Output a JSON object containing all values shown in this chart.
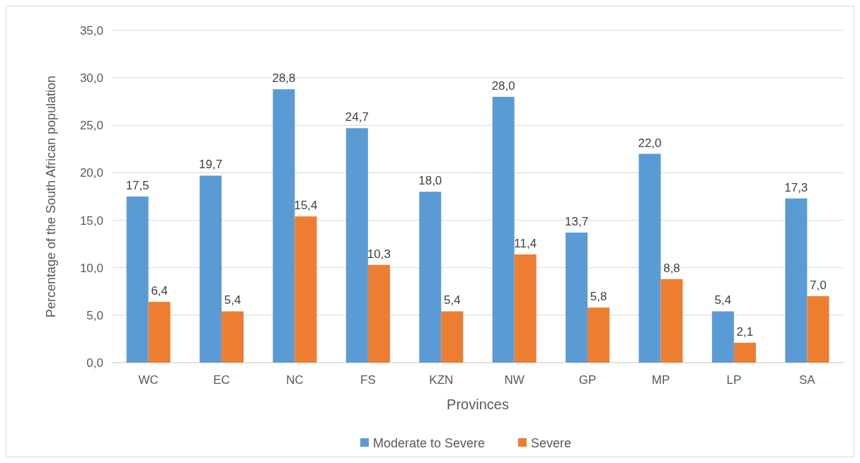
{
  "chart_data": {
    "type": "bar",
    "xlabel": "Provinces",
    "ylabel": "Percentage of the South African population",
    "categories": [
      "WC",
      "EC",
      "NC",
      "FS",
      "KZN",
      "NW",
      "GP",
      "MP",
      "LP",
      "SA"
    ],
    "series": [
      {
        "name": "Moderate to Severe",
        "color": "#5b9bd5",
        "values": [
          17.5,
          19.7,
          28.8,
          24.7,
          18.0,
          28.0,
          13.7,
          22.0,
          5.4,
          17.3
        ],
        "value_labels": [
          "17,5",
          "19,7",
          "28,8",
          "24,7",
          "18,0",
          "28,0",
          "13,7",
          "22,0",
          "5,4",
          "17,3"
        ]
      },
      {
        "name": "Severe",
        "color": "#ed7d31",
        "values": [
          6.4,
          5.4,
          15.4,
          10.3,
          5.4,
          11.4,
          5.8,
          8.8,
          2.1,
          7.0
        ],
        "value_labels": [
          "6,4",
          "5,4",
          "15,4",
          "10,3",
          "5,4",
          "11,4",
          "5,8",
          "8,8",
          "2,1",
          "7,0"
        ]
      }
    ],
    "ylim": [
      0,
      35
    ],
    "yticks": [
      {
        "value": 0,
        "label": "0,0"
      },
      {
        "value": 5,
        "label": "5,0"
      },
      {
        "value": 10,
        "label": "10,0"
      },
      {
        "value": 15,
        "label": "15,0"
      },
      {
        "value": 20,
        "label": "20,0"
      },
      {
        "value": 25,
        "label": "25,0"
      },
      {
        "value": 30,
        "label": "30,0"
      },
      {
        "value": 35,
        "label": "35,0"
      }
    ],
    "grid": "y",
    "legend": "bottom"
  }
}
